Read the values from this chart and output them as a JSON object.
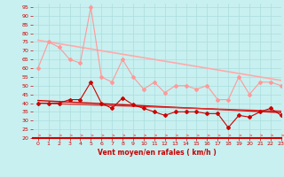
{
  "bg_color": "#c8f0f0",
  "grid_color": "#aadddd",
  "xlabel": "Vent moyen/en rafales ( km/h )",
  "xlim": [
    -0.5,
    23
  ],
  "ylim": [
    20,
    97
  ],
  "yticks": [
    20,
    25,
    30,
    35,
    40,
    45,
    50,
    55,
    60,
    65,
    70,
    75,
    80,
    85,
    90,
    95
  ],
  "xticks": [
    0,
    1,
    2,
    3,
    4,
    5,
    6,
    7,
    8,
    9,
    10,
    11,
    12,
    13,
    14,
    15,
    16,
    17,
    18,
    19,
    20,
    21,
    22,
    23
  ],
  "x": [
    0,
    1,
    2,
    3,
    4,
    5,
    6,
    7,
    8,
    9,
    10,
    11,
    12,
    13,
    14,
    15,
    16,
    17,
    18,
    19,
    20,
    21,
    22,
    23
  ],
  "series": [
    {
      "name": "rafales_data",
      "color": "#ff9999",
      "linewidth": 0.8,
      "marker": "D",
      "markersize": 2.0,
      "values": [
        60,
        75,
        72,
        65,
        63,
        95,
        55,
        52,
        65,
        55,
        48,
        52,
        46,
        50,
        50,
        48,
        50,
        42,
        42,
        55,
        45,
        52,
        52,
        50
      ]
    },
    {
      "name": "rafales_trend",
      "color": "#ffaaaa",
      "linewidth": 1.2,
      "marker": null,
      "markersize": 0,
      "values": [
        76,
        75,
        74,
        73,
        72,
        71,
        70,
        69,
        68,
        67,
        66,
        65,
        64,
        63,
        62,
        61,
        60,
        59,
        58,
        57,
        56,
        55,
        54,
        53
      ]
    },
    {
      "name": "moyen_data",
      "color": "#cc0000",
      "linewidth": 0.8,
      "marker": "D",
      "markersize": 2.0,
      "values": [
        40,
        40,
        40,
        42,
        42,
        52,
        40,
        37,
        43,
        39,
        37,
        35,
        33,
        35,
        35,
        35,
        34,
        34,
        26,
        33,
        32,
        35,
        37,
        33
      ]
    },
    {
      "name": "moyen_trend1",
      "color": "#cc0000",
      "linewidth": 1.0,
      "marker": null,
      "markersize": 0,
      "values": [
        41.5,
        41.2,
        40.9,
        40.6,
        40.3,
        40.0,
        39.7,
        39.4,
        39.1,
        38.8,
        38.5,
        38.2,
        37.9,
        37.6,
        37.3,
        37.0,
        36.7,
        36.4,
        36.1,
        35.8,
        35.5,
        35.2,
        34.9,
        34.6
      ]
    },
    {
      "name": "moyen_trend2",
      "color": "#dd3333",
      "linewidth": 1.0,
      "marker": null,
      "markersize": 0,
      "values": [
        40.0,
        39.8,
        39.6,
        39.4,
        39.2,
        39.0,
        38.8,
        38.6,
        38.4,
        38.2,
        38.0,
        37.8,
        37.6,
        37.4,
        37.2,
        37.0,
        36.8,
        36.6,
        36.4,
        36.2,
        36.0,
        35.8,
        35.6,
        35.4
      ]
    }
  ],
  "wind_arrows_color": "#ff6666"
}
